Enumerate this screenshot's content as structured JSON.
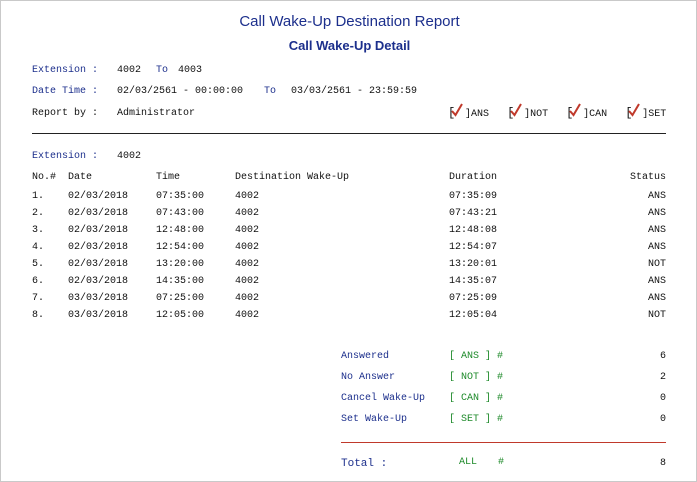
{
  "report": {
    "title": "Call Wake-Up Destination Report",
    "subtitle": "Call Wake-Up Detail"
  },
  "filters": {
    "extension_label": "Extension :",
    "extension_from": "4002",
    "to_word": "To",
    "extension_to": "4003",
    "datetime_label": "Date Time :",
    "datetime_from": "02/03/2561 - 00:00:00",
    "datetime_to_word": "To",
    "datetime_to": "03/03/2561 - 23:59:59",
    "report_by_label": "Report by :",
    "report_by_value": "Administrator"
  },
  "legend": [
    {
      "code": "ANS",
      "checked": true
    },
    {
      "code": "NOT",
      "checked": true
    },
    {
      "code": "CAN",
      "checked": true
    },
    {
      "code": "SET",
      "checked": true
    }
  ],
  "section": {
    "extension_label": "Extension :",
    "extension_value": "4002"
  },
  "table": {
    "headers": {
      "no": "No.#",
      "date": "Date",
      "time": "Time",
      "destination": "Destination Wake-Up",
      "duration": "Duration",
      "status": "Status"
    },
    "rows": [
      {
        "no": "1.",
        "date": "02/03/2018",
        "time": "07:35:00",
        "destination": "4002",
        "duration": "07:35:09",
        "status": "ANS"
      },
      {
        "no": "2.",
        "date": "02/03/2018",
        "time": "07:43:00",
        "destination": "4002",
        "duration": "07:43:21",
        "status": "ANS"
      },
      {
        "no": "3.",
        "date": "02/03/2018",
        "time": "12:48:00",
        "destination": "4002",
        "duration": "12:48:08",
        "status": "ANS"
      },
      {
        "no": "4.",
        "date": "02/03/2018",
        "time": "12:54:00",
        "destination": "4002",
        "duration": "12:54:07",
        "status": "ANS"
      },
      {
        "no": "5.",
        "date": "02/03/2018",
        "time": "13:20:00",
        "destination": "4002",
        "duration": "13:20:01",
        "status": "NOT"
      },
      {
        "no": "6.",
        "date": "02/03/2018",
        "time": "14:35:00",
        "destination": "4002",
        "duration": "14:35:07",
        "status": "ANS"
      },
      {
        "no": "7.",
        "date": "03/03/2018",
        "time": "07:25:00",
        "destination": "4002",
        "duration": "07:25:09",
        "status": "ANS"
      },
      {
        "no": "8.",
        "date": "03/03/2018",
        "time": "12:05:00",
        "destination": "4002",
        "duration": "12:05:04",
        "status": "NOT"
      }
    ]
  },
  "summary": {
    "items": [
      {
        "label": "Answered",
        "code": "[ ANS ] #",
        "count": "6"
      },
      {
        "label": "No Answer",
        "code": "[ NOT ] #",
        "count": "2"
      },
      {
        "label": "Cancel Wake-Up",
        "code": "[ CAN ] #",
        "count": "0"
      },
      {
        "label": "Set Wake-Up",
        "code": "[ SET ] #",
        "count": "0"
      }
    ],
    "total_label": "Total :",
    "total_code": "ALL",
    "total_hash": "#",
    "total_count": "8"
  },
  "colors": {
    "navy": "#1c2f8c",
    "green": "#1e8a2a",
    "check_red": "#c0392b"
  }
}
